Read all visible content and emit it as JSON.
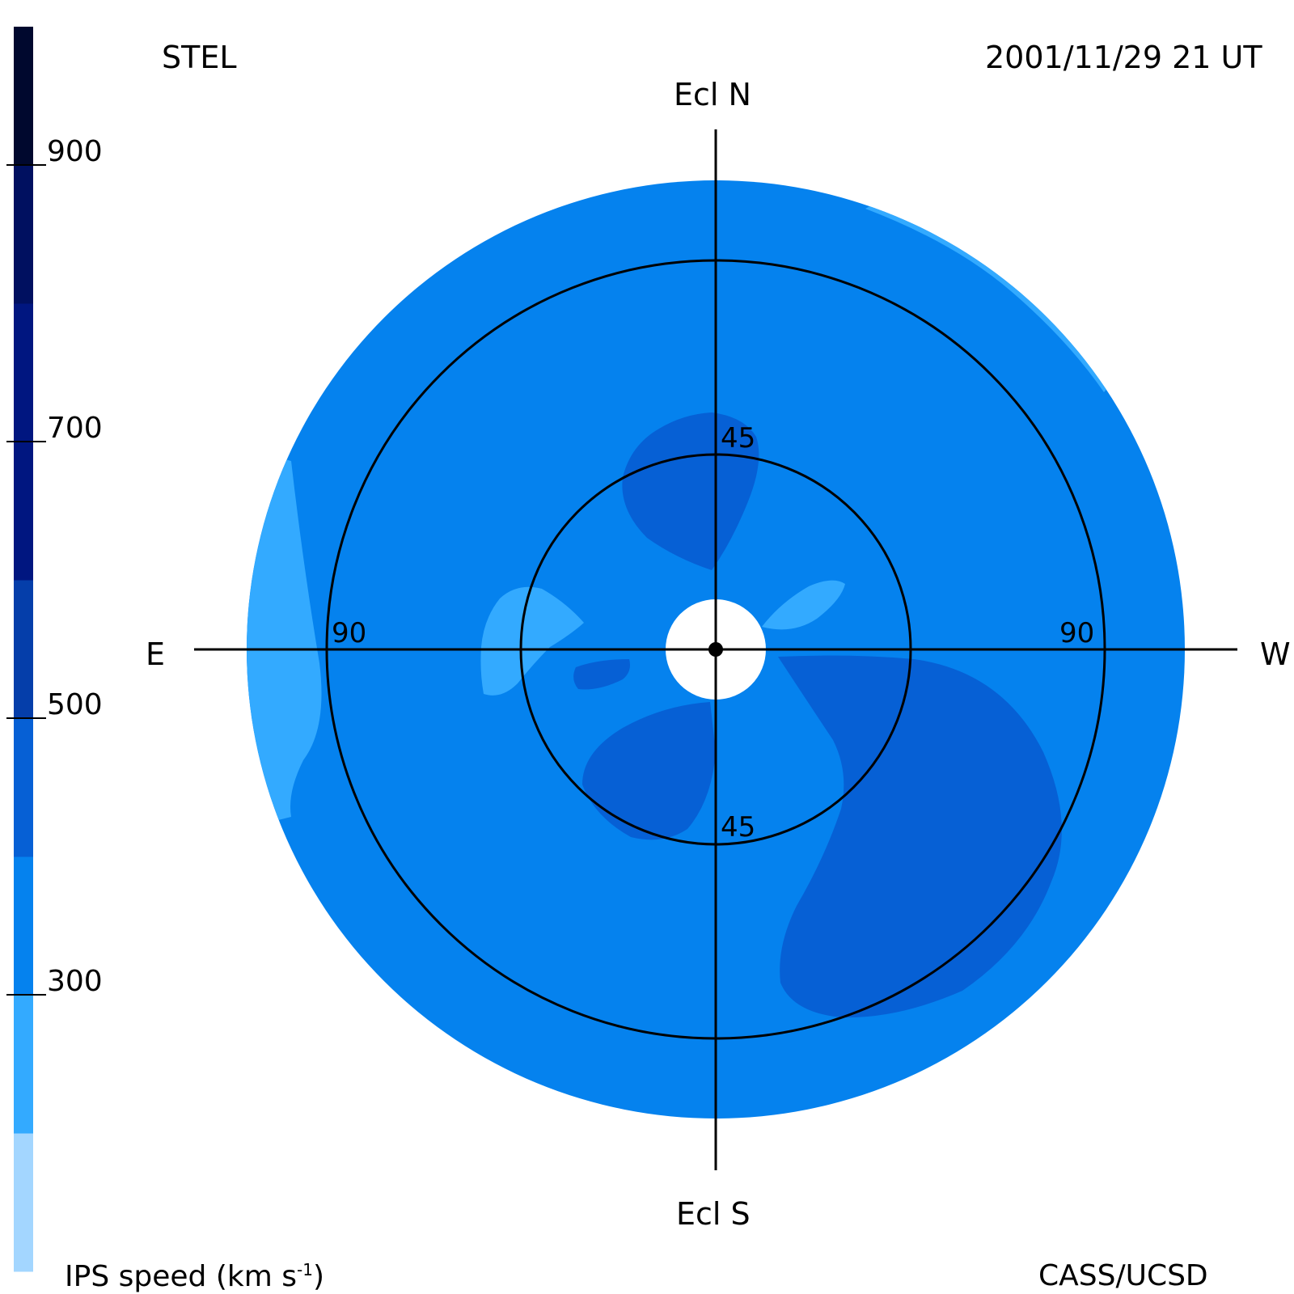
{
  "header": {
    "station": "STEL",
    "datetime": "2001/11/29 21 UT"
  },
  "footer": {
    "colorbar_label": "IPS speed (km s",
    "colorbar_label_exp": "-1",
    "colorbar_label_end": ")",
    "credit": "CASS/UCSD"
  },
  "directions": {
    "north": "Ecl N",
    "south": "Ecl S",
    "east": "E",
    "west": "W"
  },
  "colors": {
    "c1": "#a3d6ff",
    "c2": "#33aaff",
    "c3": "#0582ee",
    "c4": "#0660d5",
    "c5": "#053eaa",
    "c6": "#001680",
    "c7": "#001060",
    "c8": "#00082e"
  },
  "chart_data": {
    "type": "heatmap",
    "projection": "fisheye sky map centered on the Sun",
    "colorbar": {
      "quantity": "IPS speed",
      "unit": "km s^-1",
      "range": [
        100,
        1000
      ],
      "band_step": 100,
      "tick_labels": [
        "300",
        "500",
        "700",
        "900"
      ],
      "bands": [
        {
          "from": 100,
          "to": 200,
          "color": "#a3d6ff"
        },
        {
          "from": 200,
          "to": 300,
          "color": "#33aaff"
        },
        {
          "from": 300,
          "to": 400,
          "color": "#0582ee"
        },
        {
          "from": 400,
          "to": 500,
          "color": "#0660d5"
        },
        {
          "from": 500,
          "to": 600,
          "color": "#053eaa"
        },
        {
          "from": 600,
          "to": 700,
          "color": "#001680"
        },
        {
          "from": 700,
          "to": 800,
          "color": "#001680"
        },
        {
          "from": 800,
          "to": 900,
          "color": "#001060"
        },
        {
          "from": 900,
          "to": 1000,
          "color": "#00082e"
        }
      ]
    },
    "elongation_rings": [
      {
        "label": "45"
      },
      {
        "label": "90"
      }
    ],
    "background_speed_band": "300-400",
    "regions": [
      {
        "name": "outer-west-arc",
        "speed_band": "200-300"
      },
      {
        "name": "outer-east-arc",
        "speed_band": "200-300"
      },
      {
        "name": "north-lobe",
        "speed_band": "400-500"
      },
      {
        "name": "southwest-lobe",
        "speed_band": "400-500"
      },
      {
        "name": "southeast-lobe",
        "speed_band": "400-500"
      },
      {
        "name": "inner-east-lobe",
        "speed_band": "400-500"
      },
      {
        "name": "inner-ne-lobe",
        "speed_band": "200-300"
      },
      {
        "name": "inner-nw-lobe",
        "speed_band": "200-300"
      }
    ]
  }
}
